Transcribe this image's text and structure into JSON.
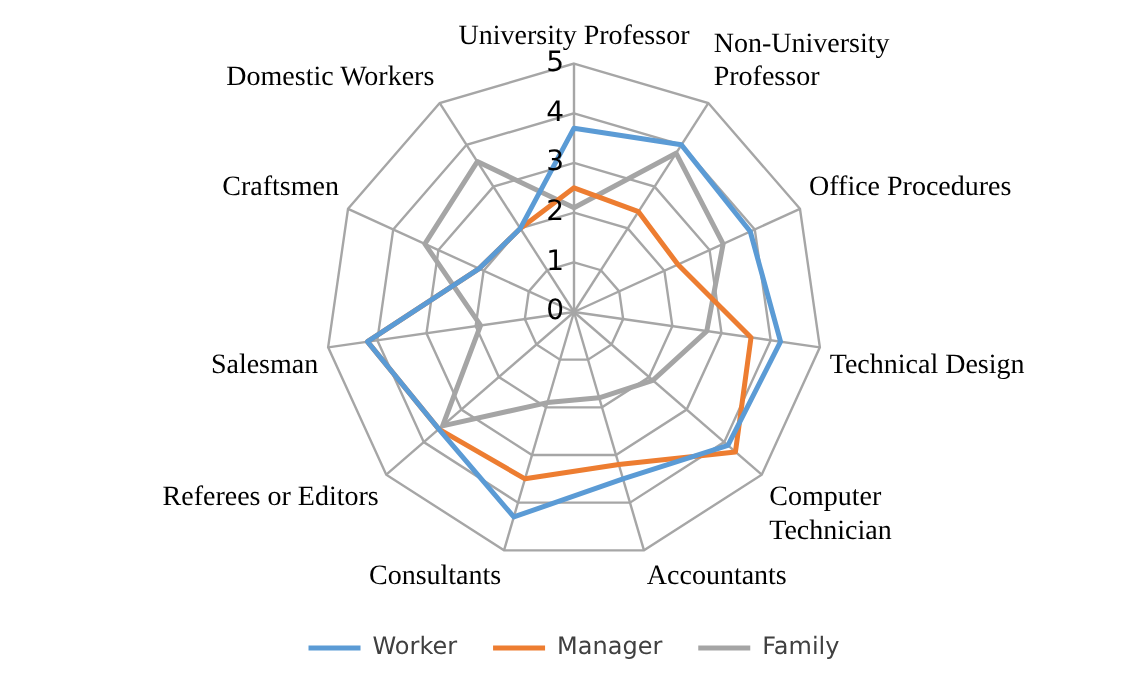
{
  "chart_data": {
    "type": "radar",
    "categories": [
      "University Professor",
      "Non-University Professor",
      "Office Procedures",
      "Technical Design",
      "Computer Technician",
      "Accountants",
      "Consultants",
      "Referees or Editors",
      "Salesman",
      "Craftsmen",
      "Domestic Workers"
    ],
    "series": [
      {
        "name": "Worker",
        "color": "#5b9bd5",
        "values": [
          3.7,
          4.0,
          3.9,
          4.2,
          4.1,
          3.5,
          4.3,
          3.6,
          4.2,
          2.1,
          2.0
        ]
      },
      {
        "name": "Manager",
        "color": "#ed7d31",
        "values": [
          2.5,
          2.4,
          2.3,
          3.6,
          4.3,
          3.2,
          3.5,
          3.6,
          4.2,
          2.1,
          2.0
        ]
      },
      {
        "name": "Family",
        "color": "#a5a5a5",
        "values": [
          2.1,
          3.8,
          3.3,
          2.7,
          2.1,
          1.8,
          1.9,
          3.5,
          1.9,
          3.3,
          3.6
        ]
      }
    ],
    "ylim": [
      0,
      5
    ],
    "yticks": [
      0,
      1,
      2,
      3,
      4,
      5
    ],
    "grid": true,
    "legend": "bottom",
    "marker": "none"
  }
}
